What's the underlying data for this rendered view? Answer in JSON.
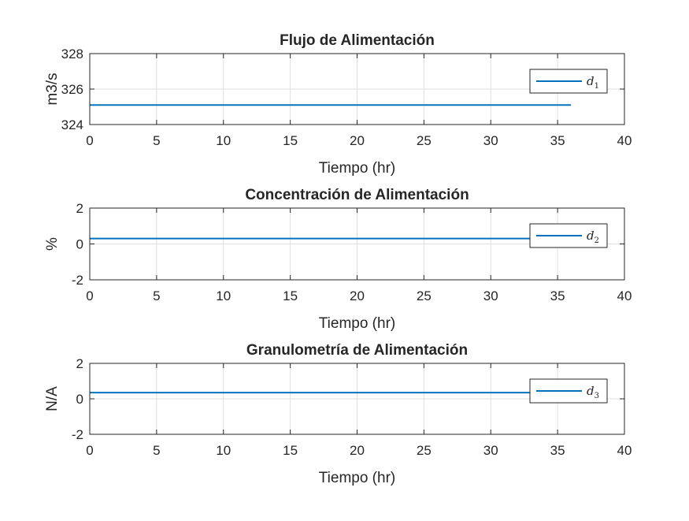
{
  "chart_data": [
    {
      "type": "line",
      "title": "Flujo de Alimentación",
      "xlabel": "Tiempo (hr)",
      "ylabel": "m3/s",
      "xlim": [
        0,
        40
      ],
      "ylim": [
        324,
        328
      ],
      "xticks": [
        "0",
        "5",
        "10",
        "15",
        "20",
        "25",
        "30",
        "35",
        "40"
      ],
      "yticks": [
        "324",
        "326",
        "328"
      ],
      "grid": true,
      "legend_position": "top-right",
      "series": [
        {
          "name": "d",
          "subscript": "1",
          "color": "#0072BD",
          "x": [
            0,
            36
          ],
          "y": [
            325.1,
            325.1
          ]
        }
      ]
    },
    {
      "type": "line",
      "title": "Concentración de Alimentación",
      "xlabel": "Tiempo (hr)",
      "ylabel": "%",
      "xlim": [
        0,
        40
      ],
      "ylim": [
        -2,
        2
      ],
      "xticks": [
        "0",
        "5",
        "10",
        "15",
        "20",
        "25",
        "30",
        "35",
        "40"
      ],
      "yticks": [
        "-2",
        "0",
        "2"
      ],
      "grid": true,
      "legend_position": "top-right",
      "series": [
        {
          "name": "d",
          "subscript": "2",
          "color": "#0072BD",
          "x": [
            0,
            36
          ],
          "y": [
            0.3,
            0.3
          ]
        }
      ]
    },
    {
      "type": "line",
      "title": "Granulometría de Alimentación",
      "xlabel": "Tiempo (hr)",
      "ylabel": "N/A",
      "xlim": [
        0,
        40
      ],
      "ylim": [
        -2,
        2
      ],
      "xticks": [
        "0",
        "5",
        "10",
        "15",
        "20",
        "25",
        "30",
        "35",
        "40"
      ],
      "yticks": [
        "-2",
        "0",
        "2"
      ],
      "grid": true,
      "legend_position": "top-right",
      "series": [
        {
          "name": "d",
          "subscript": "3",
          "color": "#0072BD",
          "x": [
            0,
            36
          ],
          "y": [
            0.35,
            0.35
          ]
        }
      ]
    }
  ]
}
